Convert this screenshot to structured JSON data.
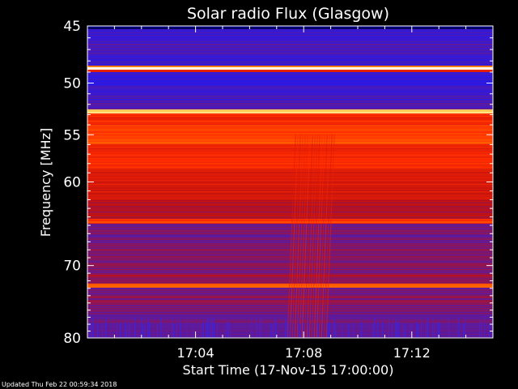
{
  "chart_data": {
    "type": "heatmap",
    "title": "Solar radio Flux (Glasgow)",
    "xlabel": "Start Time (17-Nov-15 17:00:00)",
    "ylabel": "Frequency [MHz]",
    "x_ticks": [
      "17:04",
      "17:08",
      "17:12"
    ],
    "x_tick_minutes": [
      4,
      8,
      12
    ],
    "xlim_minutes": [
      0,
      15
    ],
    "y_ticks": [
      45,
      50,
      55,
      60,
      70,
      80
    ],
    "ylim": [
      45,
      80
    ],
    "y_scale": "log",
    "colormap": [
      "#000040",
      "#1818ff",
      "#5a1aa0",
      "#c01010",
      "#ff2a00",
      "#ff8000",
      "#ffe070",
      "#ffffff"
    ],
    "bands": [
      {
        "from": 45.0,
        "to": 45.3,
        "level": 0.05
      },
      {
        "from": 45.3,
        "to": 46.2,
        "level": 0.22
      },
      {
        "from": 46.2,
        "to": 47.5,
        "level": 0.25
      },
      {
        "from": 47.5,
        "to": 48.4,
        "level": 0.22
      },
      {
        "from": 48.4,
        "to": 48.6,
        "level": 0.7
      },
      {
        "from": 48.6,
        "to": 48.8,
        "level": 1.0
      },
      {
        "from": 48.8,
        "to": 49.0,
        "level": 0.55
      },
      {
        "from": 49.0,
        "to": 50.8,
        "level": 0.2
      },
      {
        "from": 50.8,
        "to": 51.6,
        "level": 0.24
      },
      {
        "from": 51.6,
        "to": 52.5,
        "level": 0.26
      },
      {
        "from": 52.5,
        "to": 52.9,
        "level": 0.86
      },
      {
        "from": 52.9,
        "to": 54.0,
        "level": 0.56
      },
      {
        "from": 54.0,
        "to": 56.0,
        "level": 0.62
      },
      {
        "from": 56.0,
        "to": 58.5,
        "level": 0.55
      },
      {
        "from": 58.5,
        "to": 62.0,
        "level": 0.48
      },
      {
        "from": 62.0,
        "to": 64.2,
        "level": 0.42
      },
      {
        "from": 64.2,
        "to": 64.8,
        "level": 0.6
      },
      {
        "from": 64.8,
        "to": 67.5,
        "level": 0.32
      },
      {
        "from": 67.5,
        "to": 71.0,
        "level": 0.34
      },
      {
        "from": 71.0,
        "to": 72.4,
        "level": 0.37
      },
      {
        "from": 72.4,
        "to": 72.9,
        "level": 0.66
      },
      {
        "from": 72.9,
        "to": 76.0,
        "level": 0.34
      },
      {
        "from": 76.0,
        "to": 79.0,
        "level": 0.32
      },
      {
        "from": 79.0,
        "to": 80.0,
        "level": 0.28
      }
    ],
    "burst": {
      "minutes": [
        7.7,
        9.2
      ],
      "from": 55.0,
      "to": 80.0,
      "level": 0.52
    }
  },
  "footer": {
    "updated": "Updated Thu Feb 22 00:59:34 2018"
  }
}
